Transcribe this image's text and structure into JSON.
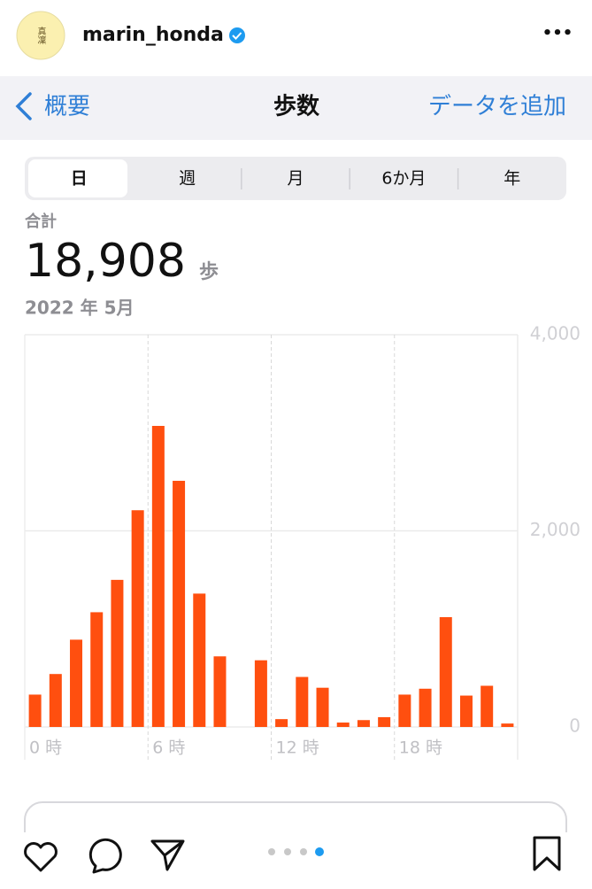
{
  "header": {
    "avatar_text": "真凜",
    "username": "marin_honda",
    "menu": "•••"
  },
  "nav": {
    "back": "概要",
    "title": "歩数",
    "action": "データを追加"
  },
  "tabs": [
    "日",
    "週",
    "月",
    "6か月",
    "年"
  ],
  "summary": {
    "label": "合計",
    "total": "18,908",
    "unit": "歩",
    "date": "2022 年 5月"
  },
  "chart_data": {
    "type": "bar",
    "color": "#ff4f0f",
    "categories": [
      "0 時",
      null,
      null,
      null,
      null,
      null,
      "6 時",
      null,
      null,
      null,
      null,
      null,
      "12 時",
      null,
      null,
      null,
      null,
      null,
      "18 時",
      null,
      null,
      null,
      null,
      null
    ],
    "values": [
      330,
      540,
      890,
      1170,
      1500,
      2210,
      3070,
      2510,
      1360,
      720,
      0,
      680,
      80,
      510,
      400,
      45,
      70,
      100,
      330,
      390,
      1120,
      320,
      420,
      35
    ],
    "ylim": [
      0,
      4000
    ],
    "yticks": [
      0,
      {
        "value": 2000,
        "label": "2,000"
      },
      {
        "value": 4000,
        "label": "4,000"
      }
    ],
    "grid": true
  }
}
